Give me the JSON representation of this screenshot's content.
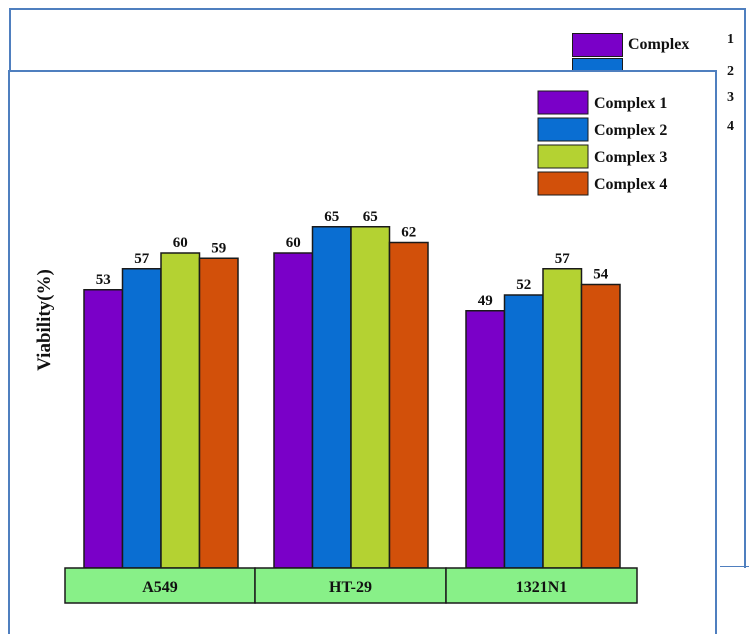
{
  "chart_data": {
    "type": "bar",
    "title": "",
    "xlabel": "",
    "ylabel": "Viability(%)",
    "ylim": [
      0,
      70
    ],
    "grid": false,
    "legend_position": "top-right",
    "categories": [
      "A549",
      "HT-29",
      "1321N1"
    ],
    "series": [
      {
        "name": "Complex 1",
        "values": [
          53,
          60,
          49
        ],
        "color": "#7a00c8"
      },
      {
        "name": "Complex 2",
        "values": [
          57,
          65,
          52
        ],
        "color": "#0a6ed2"
      },
      {
        "name": "Complex 3",
        "values": [
          60,
          65,
          57
        ],
        "color": "#b4d232"
      },
      {
        "name": "Complex 4",
        "values": [
          59,
          62,
          54
        ],
        "color": "#d2500a"
      }
    ],
    "category_box_color": "#88f088"
  },
  "back_legend": {
    "label": "Complex",
    "numbers": [
      "1",
      "2",
      "3",
      "4"
    ]
  }
}
